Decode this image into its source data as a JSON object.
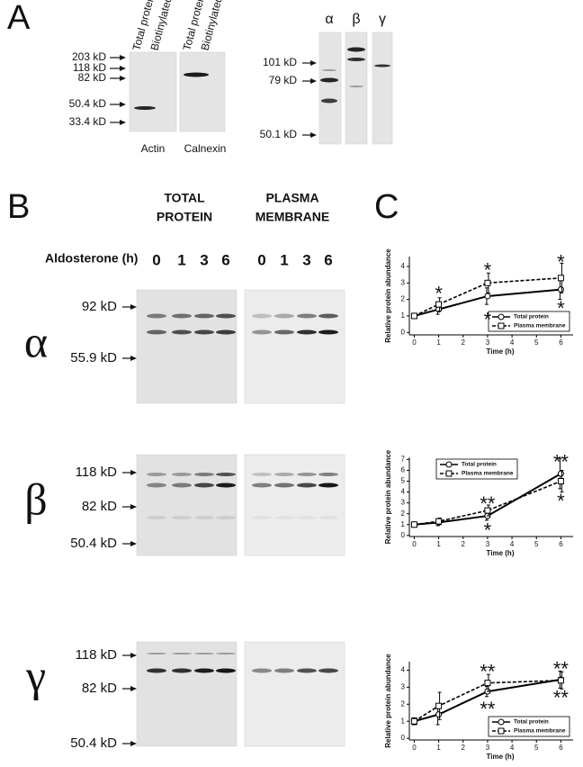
{
  "panel_labels": [
    "A",
    "B",
    "C"
  ],
  "panel_a": {
    "left": {
      "lane_labels": [
        "Total protein",
        "Biotinylated",
        "Total protein",
        "Biotinylated"
      ],
      "markers": [
        "203 kD",
        "118 kD",
        "82 kD",
        "50.4 kD",
        "33.4 kD"
      ],
      "blot_labels": [
        "Actin",
        "Calnexin"
      ]
    },
    "right": {
      "lane_labels": [
        "α",
        "β",
        "γ"
      ],
      "markers": [
        "101 kD",
        "79 kD",
        "50.1 kD"
      ]
    }
  },
  "panel_b": {
    "group_labels": [
      [
        "TOTAL",
        "PROTEIN"
      ],
      [
        "PLASMA",
        "MEMBRANE"
      ]
    ],
    "time_label": "Aldosterone (h)",
    "times": [
      "0",
      "1",
      "3",
      "6",
      "0",
      "1",
      "3",
      "6"
    ],
    "rows": [
      {
        "label": "α",
        "markers": [
          "92 kD",
          "55.9 kD"
        ]
      },
      {
        "label": "β",
        "markers": [
          "118 kD",
          "82 kD",
          "50.4 kD"
        ]
      },
      {
        "label": "γ",
        "markers": [
          "118 kD",
          "82 kD",
          "50.4 kD"
        ]
      }
    ]
  },
  "chart_data": [
    {
      "type": "line",
      "x": [
        0,
        1,
        3,
        6
      ],
      "xlim": [
        -0.2,
        6.5
      ],
      "xticks": [
        0,
        1,
        2,
        3,
        4,
        5,
        6
      ],
      "ylim": [
        -0.15,
        4.6
      ],
      "yticks": [
        0,
        1,
        2,
        3,
        4
      ],
      "xlabel": "Time (h)",
      "ylabel": "Relative protein abundance",
      "legend": "lower right",
      "series": [
        {
          "name": "Total protein",
          "color": "#000000",
          "style": "solid",
          "marker": "circle",
          "values": [
            1,
            1.4,
            2.2,
            2.6
          ],
          "errors": [
            0.15,
            0.3,
            0.5,
            0.6
          ]
        },
        {
          "name": "Plasma membrane",
          "color": "#000000",
          "style": "dashed",
          "marker": "square",
          "values": [
            1,
            1.7,
            3.0,
            3.3
          ],
          "errors": [
            0.15,
            0.4,
            0.6,
            0.9
          ]
        }
      ],
      "annotations": [
        "*",
        "*",
        "*",
        "*",
        "*"
      ]
    },
    {
      "type": "line",
      "x": [
        0,
        1,
        3,
        6
      ],
      "xlim": [
        -0.2,
        6.5
      ],
      "xticks": [
        0,
        1,
        2,
        3,
        4,
        5,
        6
      ],
      "ylim": [
        -0.1,
        7.2
      ],
      "yticks": [
        0,
        1,
        2,
        3,
        4,
        5,
        6,
        7
      ],
      "xlabel": "Time (h)",
      "ylabel": "Relative protein abundance",
      "legend": "upper center",
      "series": [
        {
          "name": "Total protein",
          "color": "#000000",
          "style": "solid",
          "marker": "circle",
          "values": [
            1,
            1.2,
            1.8,
            5.7
          ],
          "errors": [
            0.2,
            0.3,
            0.4,
            1.4
          ]
        },
        {
          "name": "Plasma membrane",
          "color": "#000000",
          "style": "dashed",
          "marker": "square",
          "values": [
            1,
            1.3,
            2.3,
            5.0
          ],
          "errors": [
            0.2,
            0.3,
            0.5,
            1.0
          ]
        }
      ],
      "annotations": [
        "**",
        "*",
        "**",
        "*"
      ]
    },
    {
      "type": "line",
      "x": [
        0,
        1,
        3,
        6
      ],
      "xlim": [
        -0.2,
        6.5
      ],
      "xticks": [
        0,
        1,
        2,
        3,
        4,
        5,
        6
      ],
      "ylim": [
        -0.1,
        4.5
      ],
      "yticks": [
        0,
        1,
        2,
        3,
        4
      ],
      "xlabel": "Time (h)",
      "ylabel": "Relative protein abundance",
      "legend": "lower right",
      "series": [
        {
          "name": "Total protein",
          "color": "#000000",
          "style": "solid",
          "marker": "circle",
          "values": [
            1,
            1.4,
            2.75,
            3.45
          ],
          "errors": [
            0.2,
            0.6,
            0.3,
            0.5
          ]
        },
        {
          "name": "Plasma membrane",
          "color": "#000000",
          "style": "dashed",
          "marker": "square",
          "values": [
            1,
            1.9,
            3.25,
            3.4
          ],
          "errors": [
            0.2,
            0.8,
            0.5,
            0.5
          ]
        }
      ],
      "annotations": [
        "**",
        "**",
        "**",
        "**"
      ]
    }
  ]
}
